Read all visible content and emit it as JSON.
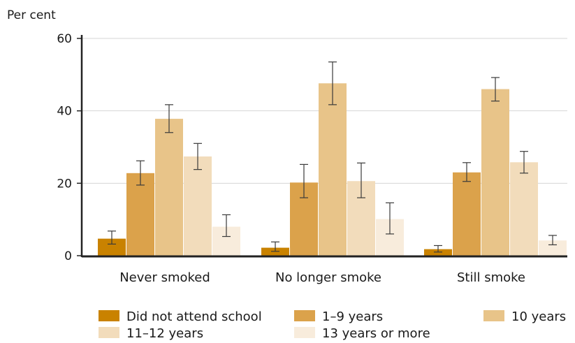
{
  "chart_data": {
    "type": "bar",
    "title": "",
    "xlabel": "",
    "ylabel": "Per cent",
    "ylim": [
      0,
      60
    ],
    "yticks": [
      0,
      20,
      40,
      60
    ],
    "grid": "horizontal",
    "legend_position": "bottom",
    "categories": [
      "Never smoked",
      "No longer smoke",
      "Still smoke"
    ],
    "series": [
      {
        "name": "Did not attend school",
        "color": "#c98200",
        "values": [
          4.7,
          2.2,
          1.8
        ],
        "error_low": [
          3.2,
          1.2,
          1.0
        ],
        "error_high": [
          6.8,
          3.8,
          2.8
        ]
      },
      {
        "name": "1–9 years",
        "color": "#dba24b",
        "values": [
          22.8,
          20.2,
          23.0
        ],
        "error_low": [
          19.5,
          16.0,
          20.5
        ],
        "error_high": [
          26.2,
          25.2,
          25.7
        ]
      },
      {
        "name": "10 years",
        "color": "#e8c489",
        "values": [
          37.8,
          47.6,
          46.0
        ],
        "error_low": [
          34.0,
          41.7,
          42.7
        ],
        "error_high": [
          41.7,
          53.5,
          49.2
        ]
      },
      {
        "name": "11–12 years",
        "color": "#f2dcbb",
        "values": [
          27.4,
          20.6,
          25.8
        ],
        "error_low": [
          23.8,
          16.0,
          22.8
        ],
        "error_high": [
          31.0,
          25.6,
          28.8
        ]
      },
      {
        "name": "13 years or more",
        "color": "#f8ecdc",
        "values": [
          8.0,
          10.1,
          4.2
        ],
        "error_low": [
          5.3,
          6.0,
          3.0
        ],
        "error_high": [
          11.3,
          14.6,
          5.6
        ]
      }
    ]
  }
}
